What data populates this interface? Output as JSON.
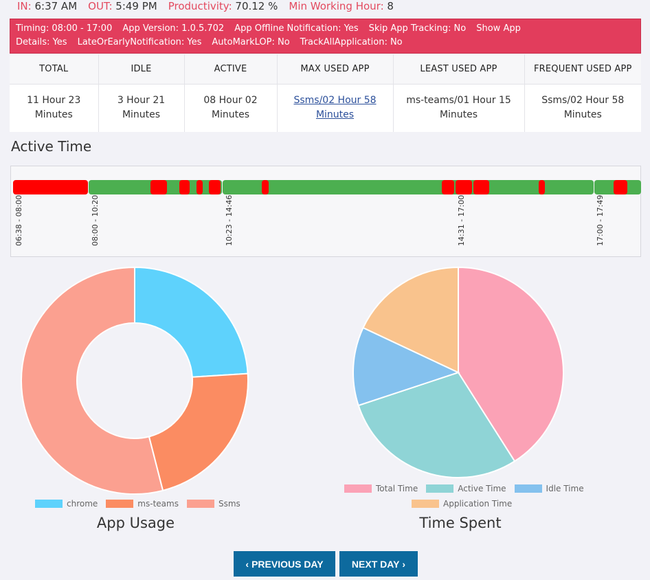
{
  "topbar": {
    "in_label": "IN:",
    "in_value": "6:37 AM",
    "out_label": "OUT:",
    "out_value": "5:49 PM",
    "prod_label": "Productivity:",
    "prod_value": "70.12 %",
    "min_label": "Min Working Hour:",
    "min_value": "8"
  },
  "banner": {
    "timing": "Timing: 08:00 - 17:00",
    "version": "App Version: 1.0.5.702",
    "offline": "App Offline Notification: Yes",
    "skip": "Skip App Tracking: No",
    "show": "Show App",
    "details": "Details: Yes",
    "late": "LateOrEarlyNotification: Yes",
    "lop": "AutoMarkLOP: No",
    "trackall": "TrackAllApplication: No"
  },
  "stats": {
    "headers": [
      "TOTAL",
      "IDLE",
      "ACTIVE",
      "MAX USED APP",
      "LEAST USED APP",
      "FREQUENT USED APP"
    ],
    "values": [
      [
        "11 Hour 23",
        "Minutes"
      ],
      [
        "3 Hour 21",
        "Minutes"
      ],
      [
        "08 Hour 02",
        "Minutes"
      ],
      [
        "Ssms/02 Hour 58",
        "Minutes"
      ],
      [
        "ms-teams/01 Hour 15",
        "Minutes"
      ],
      [
        "Ssms/02 Hour 58",
        "Minutes"
      ]
    ]
  },
  "active_time": {
    "title": "Active Time",
    "labels": [
      "06:38 - 08:00",
      "08:00 - 10:20",
      "10:23 - 14:46",
      "14:31 - 17:00",
      "17:00 - 17:49"
    ]
  },
  "colors": {
    "chrome": "#5ed2fc",
    "ms_teams": "#fb8c62",
    "ssms": "#fba090",
    "total": "#fba2b6",
    "active": "#8fd4d6",
    "idle": "#84c1ee",
    "application": "#f9c38d",
    "green": "#4caf50",
    "red": "#ff0000",
    "accent": "#e23d5c",
    "button": "#0d6a9e"
  },
  "chart_data": [
    {
      "type": "pie",
      "title": "App Usage",
      "donut": true,
      "labels": [
        "chrome",
        "ms-teams",
        "Ssms"
      ],
      "values": [
        24,
        22,
        54
      ]
    },
    {
      "type": "pie",
      "title": "Time Spent",
      "labels": [
        "Total Time",
        "Active Time",
        "Idle Time",
        "Application Time"
      ],
      "values": [
        11.38,
        8.03,
        3.35,
        5.0
      ]
    }
  ],
  "nav": {
    "prev": "PREVIOUS DAY",
    "next": "NEXT DAY"
  }
}
